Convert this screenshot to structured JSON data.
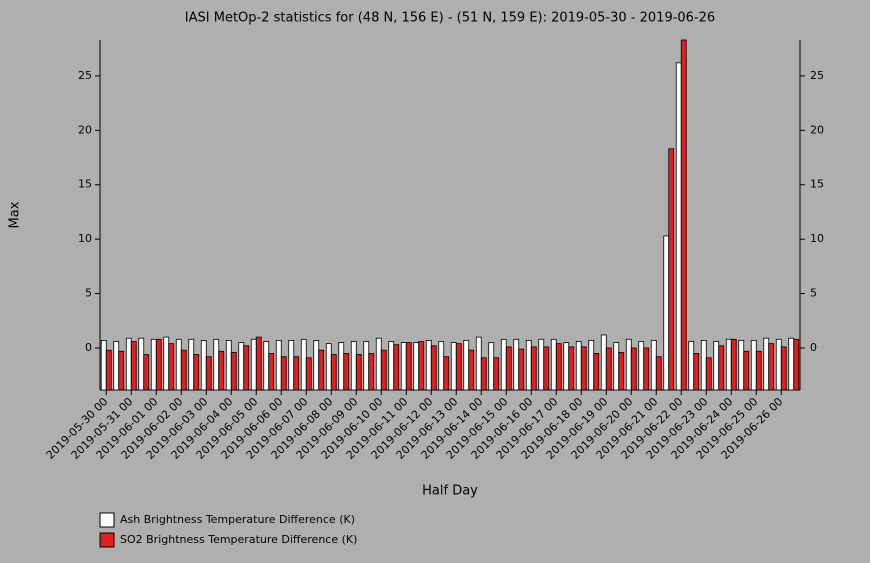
{
  "chart_data": {
    "type": "bar",
    "title": "IASI MetOp-2 statistics for (48 N, 156 E) - (51 N, 159 E): 2019-05-30 - 2019-06-26",
    "x_label": "Half Day",
    "y_label": "Max",
    "categories": [
      "2019-05-30 00",
      null,
      "2019-05-31 00",
      null,
      "2019-06-01 00",
      null,
      "2019-06-02 00",
      null,
      "2019-06-03 00",
      null,
      "2019-06-04 00",
      null,
      "2019-06-05 00",
      null,
      "2019-06-06 00",
      null,
      "2019-06-07 00",
      null,
      "2019-06-08 00",
      null,
      "2019-06-09 00",
      null,
      "2019-06-10 00",
      null,
      "2019-06-11 00",
      null,
      "2019-06-12 00",
      null,
      "2019-06-13 00",
      null,
      "2019-06-14 00",
      null,
      "2019-06-15 00",
      null,
      "2019-06-16 00",
      null,
      "2019-06-17 00",
      null,
      "2019-06-18 00",
      null,
      "2019-06-19 00",
      null,
      "2019-06-20 00",
      null,
      "2019-06-21 00",
      null,
      "2019-06-22 00",
      null,
      "2019-06-23 00",
      null,
      "2019-06-24 00",
      null,
      "2019-06-25 00",
      null,
      "2019-06-26 00",
      null
    ],
    "series": [
      {
        "name": "Ash Brightness Temperature Difference (K)",
        "color": "#ffffff",
        "values": [
          0.7,
          0.6,
          0.9,
          0.9,
          0.8,
          1.0,
          0.8,
          0.8,
          0.7,
          0.8,
          0.7,
          0.5,
          0.8,
          0.6,
          0.7,
          0.7,
          0.8,
          0.7,
          0.4,
          0.5,
          0.6,
          0.6,
          0.9,
          0.6,
          0.5,
          0.5,
          0.7,
          0.6,
          0.5,
          0.7,
          1.0,
          0.5,
          0.8,
          0.8,
          0.7,
          0.8,
          0.8,
          0.5,
          0.6,
          0.7,
          1.2,
          0.5,
          0.8,
          0.6,
          0.7,
          10.3,
          26.2,
          0.6,
          0.7,
          0.6,
          0.8,
          0.7,
          0.7,
          0.9,
          0.8,
          0.9
        ]
      },
      {
        "name": "SO2 Brightness Temperature Difference (K)",
        "color": "#e02020",
        "values": [
          -0.2,
          -0.3,
          0.6,
          -0.6,
          0.8,
          0.4,
          -0.2,
          -0.6,
          -0.8,
          -0.3,
          -0.4,
          0.2,
          1.0,
          -0.5,
          -0.8,
          -0.8,
          -0.9,
          -0.2,
          -0.6,
          -0.5,
          -0.6,
          -0.5,
          -0.2,
          0.3,
          0.5,
          0.6,
          0.2,
          -0.8,
          0.4,
          -0.2,
          -0.9,
          -0.9,
          0.1,
          -0.1,
          0.1,
          0.1,
          0.4,
          0.1,
          0.1,
          -0.5,
          0.0,
          -0.4,
          0.0,
          0.0,
          -0.8,
          18.3,
          28.3,
          -0.5,
          -0.9,
          0.2,
          0.8,
          -0.3,
          -0.3,
          0.4,
          0.1,
          0.8
        ]
      }
    ],
    "ylim": [
      -3.86,
      28.3
    ],
    "yticks": [
      0,
      5,
      10,
      15,
      20,
      25
    ],
    "grid": false,
    "legend": "bottom-left"
  }
}
